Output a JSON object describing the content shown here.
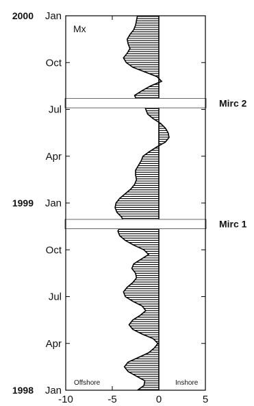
{
  "chart_data": {
    "type": "area",
    "orientation": "vertical-time",
    "series_label": "Mx",
    "x_axis": {
      "ticks": [
        -10,
        -5,
        0,
        5
      ],
      "range": [
        -10,
        5
      ],
      "left_label": "Offshore",
      "right_label": "Inshore"
    },
    "y_axis": {
      "ticks": [
        {
          "t": 0,
          "month": "Jan",
          "year": "1998"
        },
        {
          "t": 3,
          "month": "Apr",
          "year": ""
        },
        {
          "t": 6,
          "month": "Jul",
          "year": ""
        },
        {
          "t": 9,
          "month": "Oct",
          "year": ""
        },
        {
          "t": 12,
          "month": "Jan",
          "year": "1999"
        },
        {
          "t": 15,
          "month": "Apr",
          "year": ""
        },
        {
          "t": 18,
          "month": "Jul",
          "year": ""
        },
        {
          "t": 21,
          "month": "Oct",
          "year": ""
        },
        {
          "t": 24,
          "month": "Jan",
          "year": "2000"
        }
      ],
      "range_months": [
        0,
        24
      ],
      "unit": "months since Jan 1998"
    },
    "events": [
      {
        "label": "Mirc 1",
        "t_start": 10.35,
        "t_end": 10.95
      },
      {
        "label": "Mirc 2",
        "t_start": 18.1,
        "t_end": 18.7
      }
    ],
    "data": [
      {
        "t": 0.0,
        "v": -2.3
      },
      {
        "t": 0.3,
        "v": -1.6
      },
      {
        "t": 0.6,
        "v": -1.5
      },
      {
        "t": 0.9,
        "v": -2.4
      },
      {
        "t": 1.2,
        "v": -3.3
      },
      {
        "t": 1.5,
        "v": -3.7
      },
      {
        "t": 1.8,
        "v": -3.3
      },
      {
        "t": 2.1,
        "v": -2.2
      },
      {
        "t": 2.4,
        "v": -1.1
      },
      {
        "t": 2.7,
        "v": -0.5
      },
      {
        "t": 3.0,
        "v": -0.1
      },
      {
        "t": 3.3,
        "v": -0.6
      },
      {
        "t": 3.6,
        "v": -1.8
      },
      {
        "t": 3.9,
        "v": -2.8
      },
      {
        "t": 4.2,
        "v": -3.2
      },
      {
        "t": 4.5,
        "v": -2.8
      },
      {
        "t": 4.8,
        "v": -2.0
      },
      {
        "t": 5.1,
        "v": -1.4
      },
      {
        "t": 5.4,
        "v": -1.8
      },
      {
        "t": 5.7,
        "v": -2.8
      },
      {
        "t": 6.0,
        "v": -3.6
      },
      {
        "t": 6.3,
        "v": -3.8
      },
      {
        "t": 6.6,
        "v": -3.4
      },
      {
        "t": 6.9,
        "v": -2.8
      },
      {
        "t": 7.2,
        "v": -2.4
      },
      {
        "t": 7.5,
        "v": -2.5
      },
      {
        "t": 7.8,
        "v": -2.9
      },
      {
        "t": 8.1,
        "v": -2.7
      },
      {
        "t": 8.4,
        "v": -1.9
      },
      {
        "t": 8.7,
        "v": -1.1
      },
      {
        "t": 9.0,
        "v": -1.6
      },
      {
        "t": 9.3,
        "v": -2.7
      },
      {
        "t": 9.6,
        "v": -3.6
      },
      {
        "t": 9.9,
        "v": -4.2
      },
      {
        "t": 10.2,
        "v": -4.4
      },
      {
        "t": 10.5,
        "v": -4.1
      },
      {
        "t": 10.8,
        "v": -3.8
      },
      {
        "t": 11.1,
        "v": -4.0
      },
      {
        "t": 11.4,
        "v": -4.5
      },
      {
        "t": 11.7,
        "v": -4.7
      },
      {
        "t": 12.0,
        "v": -4.6
      },
      {
        "t": 12.3,
        "v": -4.2
      },
      {
        "t": 12.6,
        "v": -3.6
      },
      {
        "t": 12.9,
        "v": -3.0
      },
      {
        "t": 13.2,
        "v": -2.6
      },
      {
        "t": 13.5,
        "v": -2.4
      },
      {
        "t": 13.8,
        "v": -2.5
      },
      {
        "t": 14.1,
        "v": -2.5
      },
      {
        "t": 14.4,
        "v": -2.2
      },
      {
        "t": 14.7,
        "v": -1.9
      },
      {
        "t": 15.0,
        "v": -1.7
      },
      {
        "t": 15.3,
        "v": -1.0
      },
      {
        "t": 15.6,
        "v": -0.2
      },
      {
        "t": 15.9,
        "v": 0.7
      },
      {
        "t": 16.2,
        "v": 1.1
      },
      {
        "t": 16.5,
        "v": 1.0
      },
      {
        "t": 16.8,
        "v": 0.7
      },
      {
        "t": 17.1,
        "v": 0.2
      },
      {
        "t": 17.4,
        "v": -0.6
      },
      {
        "t": 17.7,
        "v": -1.2
      },
      {
        "t": 18.0,
        "v": -1.4
      },
      {
        "t": 18.3,
        "v": -1.6
      },
      {
        "t": 18.6,
        "v": -2.4
      },
      {
        "t": 18.9,
        "v": -2.6
      },
      {
        "t": 19.2,
        "v": -1.8
      },
      {
        "t": 19.5,
        "v": -0.9
      },
      {
        "t": 19.8,
        "v": 0.3
      },
      {
        "t": 20.1,
        "v": -0.2
      },
      {
        "t": 20.4,
        "v": -1.5
      },
      {
        "t": 20.7,
        "v": -2.8
      },
      {
        "t": 21.0,
        "v": -3.5
      },
      {
        "t": 21.3,
        "v": -3.8
      },
      {
        "t": 21.6,
        "v": -3.4
      },
      {
        "t": 21.9,
        "v": -3.1
      },
      {
        "t": 22.2,
        "v": -3.3
      },
      {
        "t": 22.5,
        "v": -3.4
      },
      {
        "t": 22.8,
        "v": -3.1
      },
      {
        "t": 23.1,
        "v": -2.7
      },
      {
        "t": 23.4,
        "v": -2.5
      },
      {
        "t": 23.7,
        "v": -2.4
      },
      {
        "t": 24.0,
        "v": -2.3
      }
    ]
  }
}
